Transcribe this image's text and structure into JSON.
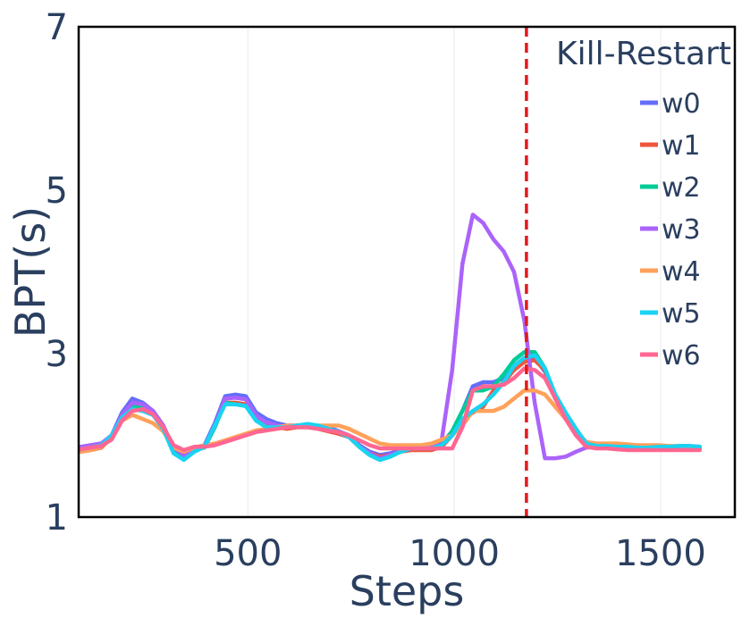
{
  "chart_data": {
    "type": "line",
    "title": "",
    "xlabel": "Steps",
    "ylabel": "BPT(s)",
    "xlim": [
      90,
      1680
    ],
    "ylim": [
      1,
      7
    ],
    "xticks": [
      500,
      1000,
      1500
    ],
    "yticks": [
      1,
      3,
      5,
      7
    ],
    "grid": true,
    "legend_position": "top-right",
    "annotations": [
      {
        "type": "vline",
        "x": 1175,
        "color": "#e31a1c",
        "dash": "dashed",
        "label": "Kill-Restart"
      }
    ],
    "x": [
      95,
      120,
      145,
      170,
      195,
      220,
      245,
      270,
      295,
      320,
      345,
      370,
      395,
      420,
      445,
      470,
      495,
      520,
      545,
      570,
      595,
      620,
      645,
      670,
      695,
      720,
      745,
      770,
      795,
      820,
      845,
      870,
      895,
      920,
      945,
      970,
      995,
      1020,
      1045,
      1070,
      1095,
      1120,
      1145,
      1170,
      1195,
      1220,
      1245,
      1270,
      1295,
      1320,
      1345,
      1370,
      1395,
      1420,
      1445,
      1470,
      1495,
      1520,
      1545,
      1570,
      1595
    ],
    "series": [
      {
        "name": "w0",
        "color": "#636efa",
        "values": [
          1.86,
          1.88,
          1.9,
          2.0,
          2.28,
          2.45,
          2.4,
          2.3,
          2.12,
          1.82,
          1.75,
          1.85,
          1.88,
          2.15,
          2.48,
          2.5,
          2.48,
          2.28,
          2.2,
          2.15,
          2.12,
          2.12,
          2.12,
          2.1,
          2.1,
          2.05,
          2.0,
          1.88,
          1.8,
          1.76,
          1.78,
          1.82,
          1.85,
          1.86,
          1.86,
          1.9,
          2.05,
          2.3,
          2.6,
          2.65,
          2.65,
          2.7,
          2.85,
          2.95,
          2.95,
          2.78,
          2.45,
          2.25,
          2.05,
          1.9,
          1.88,
          1.88,
          1.87,
          1.86,
          1.85,
          1.85,
          1.86,
          1.86,
          1.87,
          1.87,
          1.86
        ]
      },
      {
        "name": "w1",
        "color": "#ef553b",
        "values": [
          1.8,
          1.82,
          1.85,
          1.98,
          2.25,
          2.38,
          2.35,
          2.28,
          2.1,
          1.86,
          1.76,
          1.84,
          1.86,
          2.12,
          2.4,
          2.4,
          2.38,
          2.2,
          2.12,
          2.1,
          2.08,
          2.1,
          2.1,
          2.08,
          2.05,
          2.02,
          1.98,
          1.86,
          1.78,
          1.74,
          1.76,
          1.8,
          1.82,
          1.82,
          1.82,
          1.86,
          2.0,
          2.18,
          2.28,
          2.35,
          2.55,
          2.65,
          2.8,
          2.9,
          2.92,
          2.8,
          2.45,
          2.22,
          2.05,
          1.9,
          1.86,
          1.86,
          1.85,
          1.84,
          1.83,
          1.83,
          1.84,
          1.84,
          1.85,
          1.85,
          1.84
        ]
      },
      {
        "name": "w2",
        "color": "#00cc96",
        "values": [
          1.83,
          1.85,
          1.88,
          2.0,
          2.22,
          2.35,
          2.34,
          2.28,
          2.12,
          1.82,
          1.73,
          1.82,
          1.85,
          2.1,
          2.4,
          2.38,
          2.36,
          2.18,
          2.1,
          2.1,
          2.1,
          2.12,
          2.12,
          2.1,
          2.08,
          2.04,
          1.98,
          1.86,
          1.76,
          1.7,
          1.74,
          1.8,
          1.84,
          1.84,
          1.84,
          1.88,
          2.05,
          2.3,
          2.55,
          2.55,
          2.6,
          2.75,
          2.92,
          3.02,
          3.02,
          2.82,
          2.48,
          2.25,
          2.05,
          1.88,
          1.86,
          1.86,
          1.85,
          1.85,
          1.84,
          1.84,
          1.85,
          1.85,
          1.86,
          1.86,
          1.85
        ]
      },
      {
        "name": "w3",
        "color": "#ab63fa",
        "values": [
          1.86,
          1.88,
          1.9,
          2.0,
          2.25,
          2.4,
          2.38,
          2.3,
          2.12,
          1.85,
          1.76,
          1.84,
          1.86,
          2.12,
          2.45,
          2.46,
          2.44,
          2.24,
          2.16,
          2.12,
          2.1,
          2.12,
          2.12,
          2.1,
          2.08,
          2.04,
          1.98,
          1.86,
          1.78,
          1.72,
          1.76,
          1.8,
          1.84,
          1.85,
          1.86,
          1.95,
          2.8,
          4.1,
          4.7,
          4.6,
          4.4,
          4.25,
          4.0,
          3.4,
          2.4,
          1.72,
          1.72,
          1.74,
          1.8,
          1.85,
          1.86,
          1.86,
          1.85,
          1.85,
          1.84,
          1.84,
          1.85,
          1.85,
          1.86,
          1.86,
          1.85
        ]
      },
      {
        "name": "w4",
        "color": "#ffa15a",
        "values": [
          1.8,
          1.82,
          1.86,
          1.98,
          2.18,
          2.25,
          2.2,
          2.15,
          2.05,
          1.85,
          1.8,
          1.85,
          1.88,
          1.9,
          1.94,
          1.98,
          2.02,
          2.06,
          2.08,
          2.1,
          2.12,
          2.12,
          2.12,
          2.12,
          2.12,
          2.12,
          2.08,
          2.02,
          1.96,
          1.9,
          1.88,
          1.88,
          1.88,
          1.88,
          1.9,
          1.95,
          2.0,
          2.12,
          2.3,
          2.3,
          2.3,
          2.35,
          2.45,
          2.55,
          2.55,
          2.5,
          2.35,
          2.2,
          2.05,
          1.92,
          1.9,
          1.9,
          1.9,
          1.89,
          1.88,
          1.88,
          1.88,
          1.87,
          1.87,
          1.86,
          1.85
        ]
      },
      {
        "name": "w5",
        "color": "#19d3f3",
        "values": [
          1.83,
          1.85,
          1.88,
          2.0,
          2.22,
          2.32,
          2.3,
          2.25,
          2.08,
          1.78,
          1.7,
          1.8,
          1.86,
          2.12,
          2.38,
          2.38,
          2.36,
          2.18,
          2.1,
          2.1,
          2.1,
          2.12,
          2.14,
          2.12,
          2.08,
          2.04,
          1.98,
          1.86,
          1.76,
          1.7,
          1.74,
          1.8,
          1.84,
          1.84,
          1.84,
          1.88,
          2.0,
          2.2,
          2.3,
          2.38,
          2.5,
          2.65,
          2.85,
          2.95,
          2.98,
          2.82,
          2.5,
          2.28,
          2.08,
          1.9,
          1.87,
          1.87,
          1.86,
          1.86,
          1.85,
          1.85,
          1.86,
          1.86,
          1.87,
          1.87,
          1.86
        ]
      },
      {
        "name": "w6",
        "color": "#ff6692",
        "values": [
          1.83,
          1.85,
          1.87,
          1.95,
          2.18,
          2.3,
          2.32,
          2.26,
          2.1,
          1.88,
          1.82,
          1.86,
          1.86,
          1.88,
          1.92,
          1.96,
          2.0,
          2.04,
          2.06,
          2.08,
          2.1,
          2.1,
          2.1,
          2.08,
          2.06,
          2.04,
          2.0,
          1.94,
          1.88,
          1.84,
          1.84,
          1.84,
          1.84,
          1.84,
          1.84,
          1.84,
          1.84,
          2.1,
          2.55,
          2.6,
          2.6,
          2.62,
          2.7,
          2.82,
          2.8,
          2.7,
          2.45,
          2.2,
          2.0,
          1.86,
          1.84,
          1.84,
          1.83,
          1.82,
          1.82,
          1.82,
          1.82,
          1.82,
          1.82,
          1.82,
          1.82
        ]
      }
    ]
  }
}
